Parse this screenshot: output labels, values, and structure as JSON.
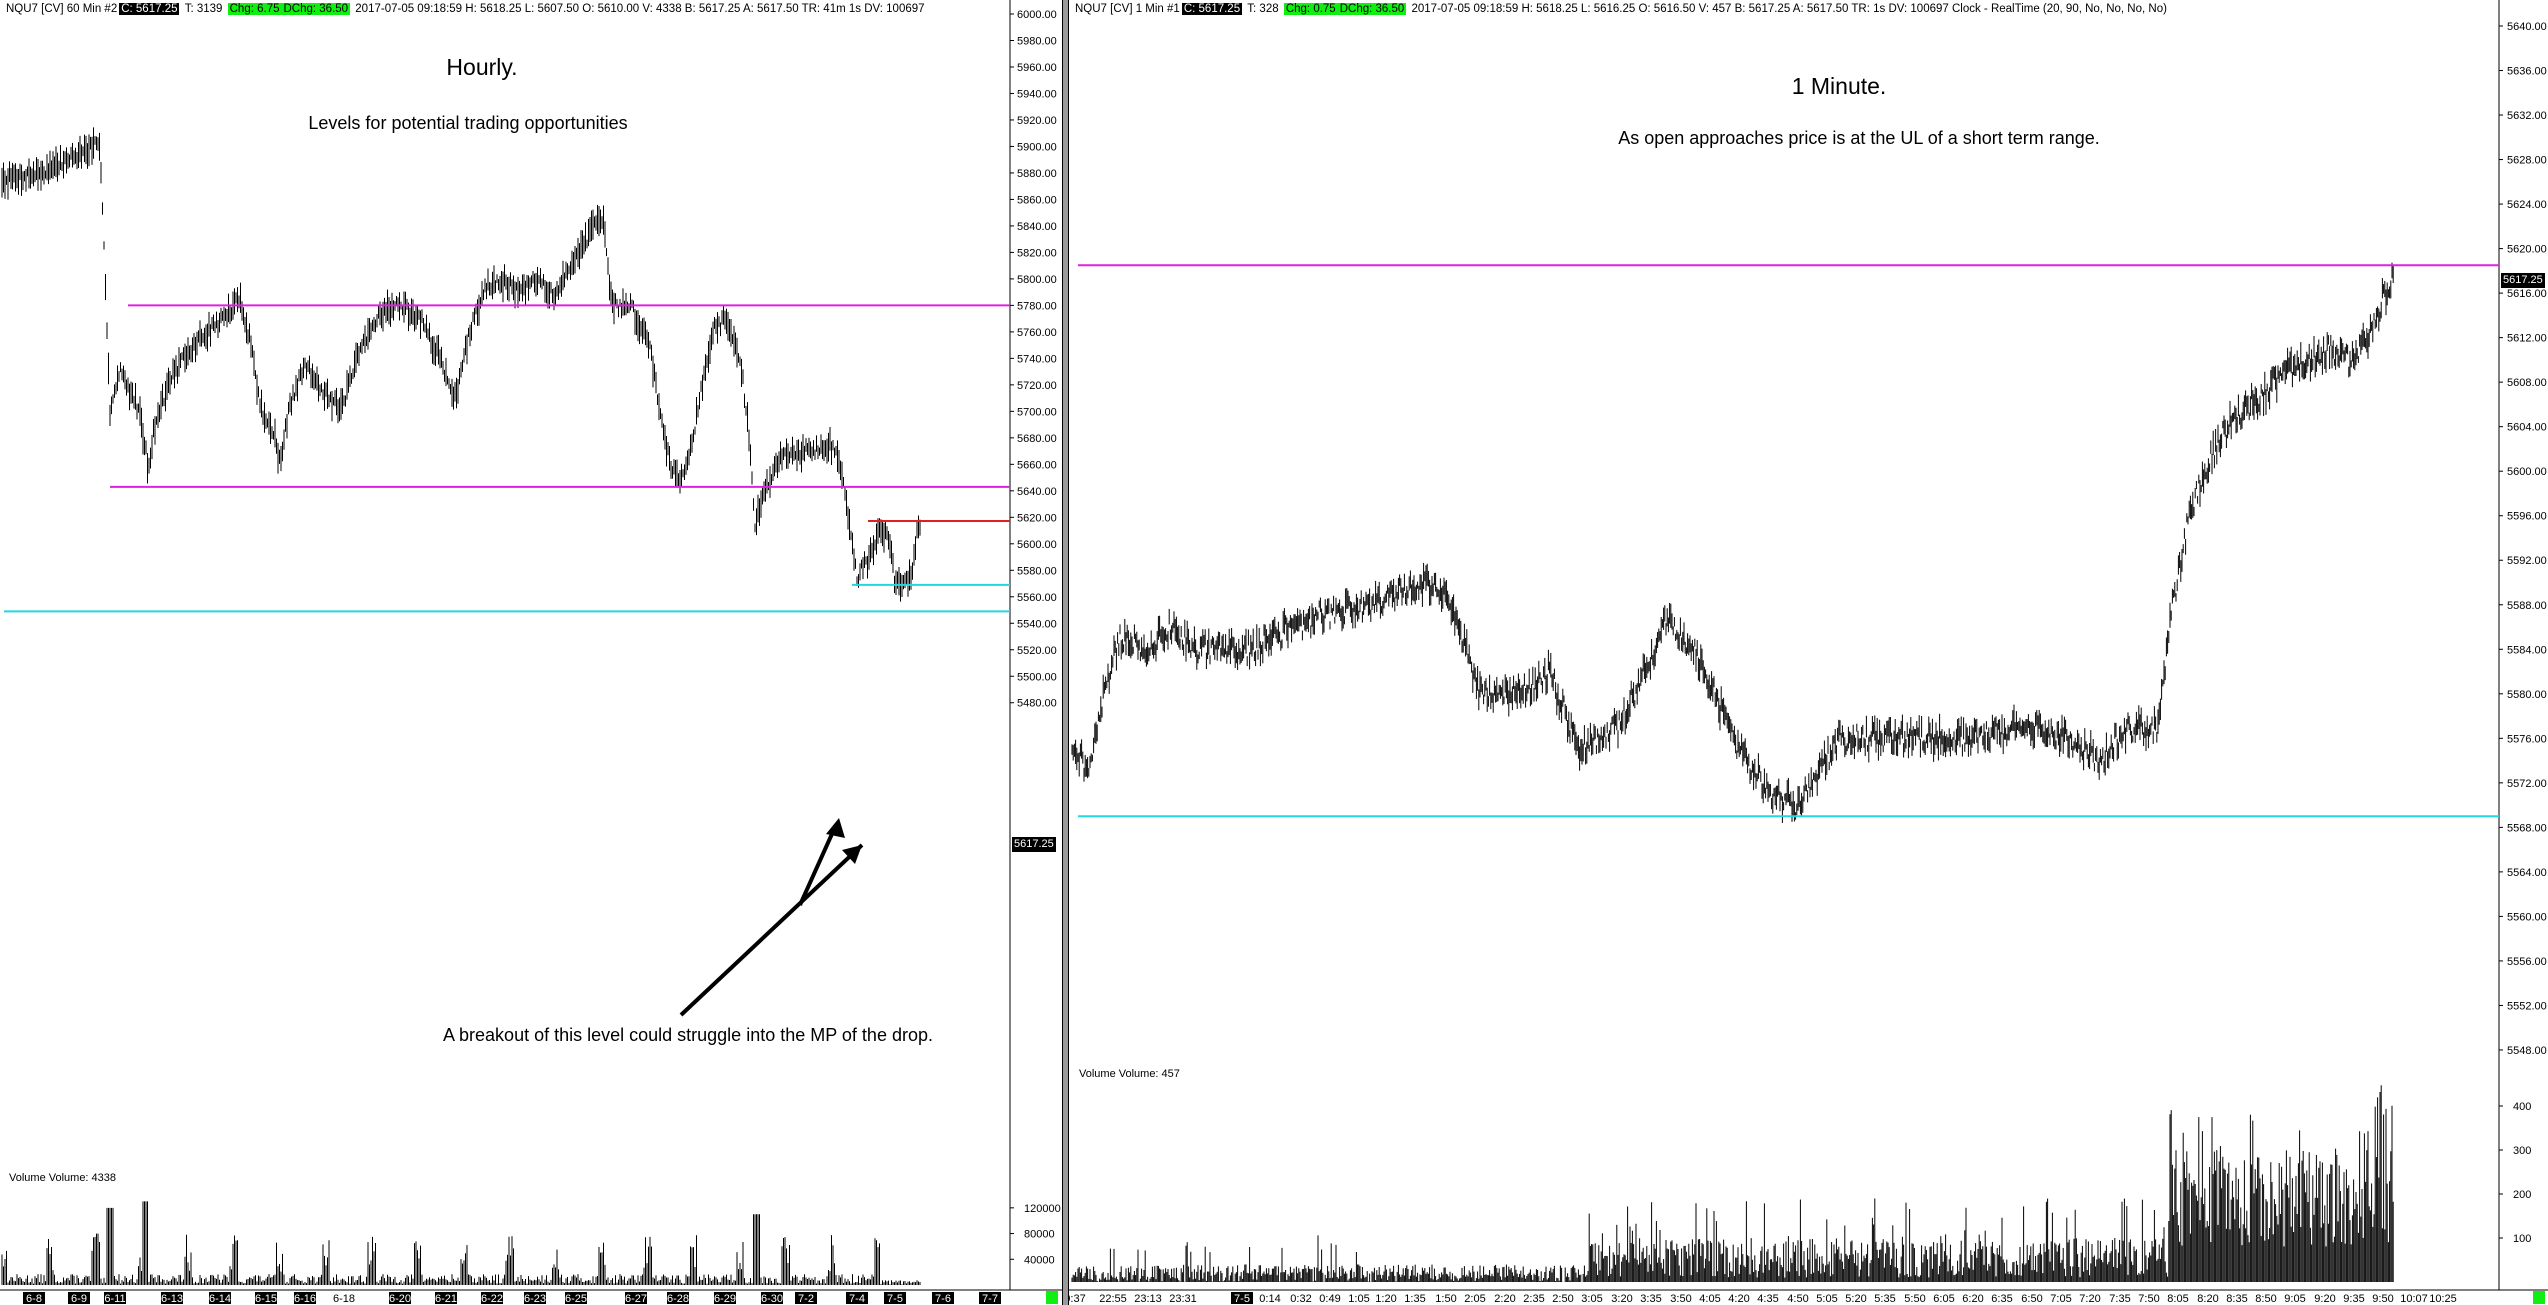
{
  "left": {
    "header": {
      "symbol": "NQU7 [CV]  60 Min   #2",
      "close": "C: 5617.25",
      "trades": "T: 3139",
      "chg": "Chg: 6.75",
      "dchg": "DChg: 36.50",
      "rest": "2017-07-05 09:18:59 H: 5618.25  L: 5607.50  O: 5610.00  V: 4338  B: 5617.25  A: 5617.50  TR: 41m 1s DV: 100697"
    },
    "title": "Hourly.",
    "subtitle": "Levels for potential trading opportunities",
    "annotation": "A breakout of this level could struggle into the MP of the drop.",
    "volume_label": "Volume  Volume: 4338",
    "price_label": "5617.25",
    "price_axis": [
      "6000.00",
      "5980.00",
      "5960.00",
      "5940.00",
      "5920.00",
      "5900.00",
      "5880.00",
      "5860.00",
      "5840.00",
      "5820.00",
      "5800.00",
      "5780.00",
      "5760.00",
      "5740.00",
      "5720.00",
      "5700.00",
      "5680.00",
      "5660.00",
      "5640.00",
      "5620.00",
      "5600.00",
      "5580.00",
      "5560.00",
      "5540.00",
      "5520.00",
      "5500.00",
      "5480.00"
    ],
    "volume_axis": [
      "120000",
      "80000",
      "40000"
    ],
    "date_axis": [
      "6-8",
      "6-9",
      "6-11",
      "6-13",
      "6-14",
      "6-15",
      "6-16",
      "6-18",
      "6-20",
      "6-21",
      "6-22",
      "6-23",
      "6-25",
      "6-27",
      "6-28",
      "6-29",
      "6-30",
      "7-2",
      "7-4",
      "7-5",
      "7-6",
      "7-7"
    ],
    "levels": {
      "upper": 5780,
      "middle": 5643,
      "red": 5617.25,
      "cyan_short": 5569,
      "cyan_long": 5549
    }
  },
  "right": {
    "header": {
      "symbol": "NQU7 [CV]  1 Min   #1",
      "close": "C: 5617.25",
      "trades": "T: 328",
      "chg": "Chg: 0.75",
      "dchg": "DChg: 36.50",
      "rest": "2017-07-05 09:18:59 H: 5618.25  L: 5616.25  O: 5616.50  V: 457  B: 5617.25  A: 5617.50  TR: 1s DV: 100697 Clock - RealTime   (20, 90, No, No, No, No)"
    },
    "title": "1 Minute.",
    "subtitle": "As open approaches price is at the UL of a short term range.",
    "volume_label": "Volume  Volume: 457",
    "price_label": "5617.25",
    "price_axis": [
      "5640.00",
      "5636.00",
      "5632.00",
      "5628.00",
      "5624.00",
      "5620.00",
      "5616.00",
      "5612.00",
      "5608.00",
      "5604.00",
      "5600.00",
      "5596.00",
      "5592.00",
      "5588.00",
      "5584.00",
      "5580.00",
      "5576.00",
      "5572.00",
      "5568.00",
      "5564.00",
      "5560.00",
      "5556.00",
      "5552.00",
      "5548.00"
    ],
    "volume_axis": [
      "400",
      "300",
      "200",
      "100"
    ],
    "time_axis": [
      "0:37",
      "22:55",
      "23:13",
      "23:31",
      "7-5",
      "0:14",
      "0:32",
      "0:49",
      "1:05",
      "1:20",
      "1:35",
      "1:50",
      "2:05",
      "2:20",
      "2:35",
      "2:50",
      "3:05",
      "3:20",
      "3:35",
      "3:50",
      "4:05",
      "4:20",
      "4:35",
      "4:50",
      "5:05",
      "5:20",
      "5:35",
      "5:50",
      "6:05",
      "6:20",
      "6:35",
      "6:50",
      "7:05",
      "7:20",
      "7:35",
      "7:50",
      "8:05",
      "8:20",
      "8:35",
      "8:50",
      "9:05",
      "9:20",
      "9:35",
      "9:50",
      "10:07",
      "10:25"
    ],
    "levels": {
      "magenta": 5618.5,
      "cyan": 5569
    }
  },
  "colors": {
    "magenta": "#e020e0",
    "cyan": "#22d8e0",
    "red": "#e02020",
    "highlight": "#11ee11"
  }
}
